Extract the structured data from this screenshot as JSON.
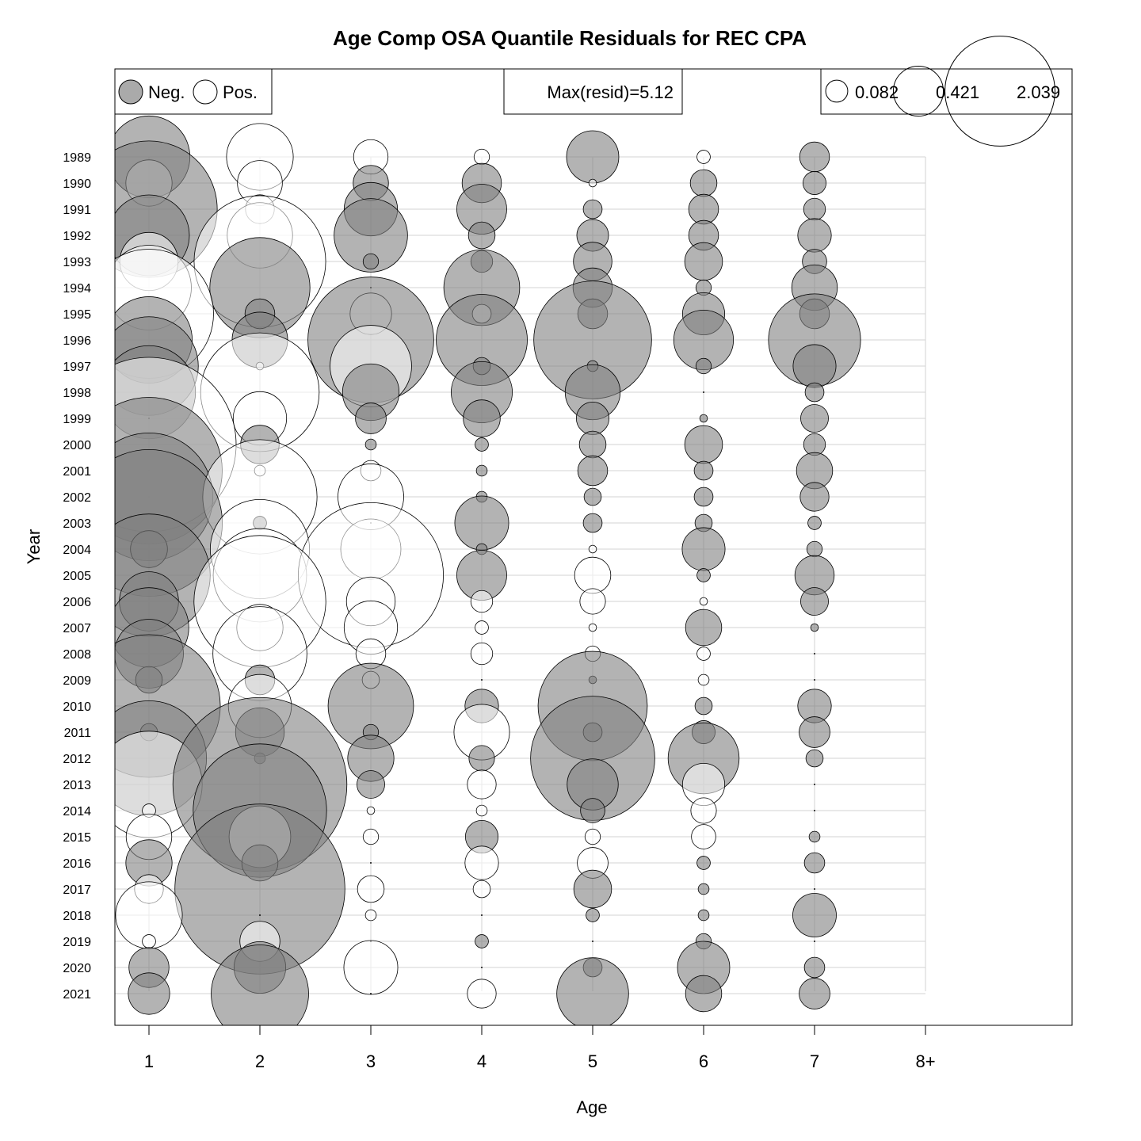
{
  "chart_data": {
    "type": "bubble",
    "title": "Age Comp OSA Quantile Residuals for REC CPA",
    "xlabel": "Age",
    "ylabel": "Year",
    "x_categories": [
      "1",
      "2",
      "3",
      "4",
      "5",
      "6",
      "7",
      "8+"
    ],
    "years": [
      1989,
      1990,
      1991,
      1992,
      1993,
      1994,
      1995,
      1996,
      1997,
      1998,
      1999,
      2000,
      2001,
      2002,
      2003,
      2004,
      2005,
      2006,
      2007,
      2008,
      2009,
      2010,
      2011,
      2012,
      2013,
      2014,
      2015,
      2016,
      2017,
      2018,
      2019,
      2020,
      2021
    ],
    "year_labels": [
      "1989",
      "1990",
      "1991",
      "1992",
      "1993",
      "1994",
      "1995",
      "1996",
      "1997",
      "1998",
      "1999",
      "2000",
      "2001",
      "2002",
      "2003",
      "2004",
      "2005",
      "2006",
      "2007",
      "2008",
      "2009",
      "2010",
      "2011",
      "2012",
      "2013",
      "2014",
      "2015",
      "2016",
      "2017",
      "2018",
      "2019",
      "2020",
      "2021"
    ],
    "legend_sign": {
      "neg_label": "Neg.",
      "pos_label": "Pos."
    },
    "max_text": "Max(resid)=5.12",
    "max_resid": 5.12,
    "size_legend_labels": [
      "0.082",
      "0.421",
      "2.039"
    ],
    "size_legend_values": [
      0.082,
      0.421,
      2.039
    ],
    "colors": {
      "negative": "#999999",
      "positive": "#ffffff",
      "grid": "#d3d3d3"
    },
    "grid": true,
    "residuals": [
      [
        -1.13,
        0.75,
        0.2,
        0.04,
        -0.46,
        0.03,
        -0.15
      ],
      [
        0.36,
        0.34,
        -0.21,
        -0.26,
        0.01,
        -0.12,
        -0.09
      ],
      [
        -3.14,
        0.14,
        -0.48,
        -0.42,
        -0.06,
        -0.15,
        -0.08
      ],
      [
        -1.1,
        0.72,
        -0.91,
        -0.12,
        -0.17,
        -0.15,
        -0.19
      ],
      [
        0.57,
        2.92,
        -0.04,
        -0.08,
        -0.25,
        -0.24,
        -0.1
      ],
      [
        1.21,
        -1.69,
        0.0,
        -0.97,
        -0.26,
        -0.04,
        -0.35
      ],
      [
        2.81,
        -0.15,
        0.29,
        0.06,
        -0.15,
        -0.3,
        -0.15
      ],
      [
        -1.26,
        -0.52,
        -2.67,
        -1.4,
        -2.34,
        -0.6,
        -1.43
      ],
      [
        -1.64,
        0.01,
        1.12,
        -0.05,
        -0.02,
        -0.04,
        -0.31
      ],
      [
        -1.46,
        2.37,
        -0.54,
        -0.63,
        -0.51,
        0.0,
        -0.06
      ],
      [
        0.0,
        0.48,
        -0.16,
        -0.23,
        -0.18,
        -0.01,
        -0.13
      ],
      [
        5.12,
        -0.25,
        -0.02,
        -0.03,
        -0.12,
        -0.24,
        -0.08
      ],
      [
        -3.62,
        0.02,
        0.07,
        -0.02,
        -0.15,
        -0.06,
        -0.22
      ],
      [
        -2.75,
        2.2,
        0.73,
        -0.02,
        -0.05,
        -0.06,
        -0.14
      ],
      [
        -3.63,
        -0.03,
        0.0,
        -0.49,
        -0.06,
        -0.05,
        -0.03
      ],
      [
        -0.23,
        1.66,
        0.61,
        -0.02,
        0.01,
        -0.31,
        -0.04
      ],
      [
        -2.53,
        1.47,
        3.55,
        -0.42,
        0.22,
        -0.03,
        -0.26
      ],
      [
        -0.59,
        2.93,
        0.4,
        0.08,
        0.11,
        0.01,
        -0.13
      ],
      [
        -1.07,
        0.36,
        0.48,
        0.03,
        0.01,
        -0.22,
        -0.01
      ],
      [
        -0.8,
        1.49,
        0.15,
        0.08,
        0.04,
        0.03,
        0.0
      ],
      [
        -0.12,
        -0.15,
        0.05,
        0.0,
        -0.01,
        0.02,
        0.0
      ],
      [
        -3.43,
        0.67,
        -1.23,
        -0.19,
        -2.01,
        -0.05,
        -0.19
      ],
      [
        -0.05,
        -0.4,
        -0.04,
        0.52,
        -0.06,
        -0.09,
        -0.16
      ],
      [
        -2.23,
        -0.02,
        -0.36,
        -0.11,
        -2.6,
        -0.85,
        -0.05
      ],
      [
        1.91,
        -5.1,
        -0.13,
        0.14,
        -0.44,
        0.3,
        0.0
      ],
      [
        0.03,
        -3.0,
        0.01,
        0.02,
        -0.1,
        0.11,
        0.0
      ],
      [
        0.35,
        0.64,
        0.04,
        -0.18,
        0.04,
        0.1,
        -0.02
      ],
      [
        -0.36,
        -0.22,
        0.0,
        0.19,
        0.16,
        -0.03,
        -0.07
      ],
      [
        0.14,
        -4.87,
        0.12,
        0.05,
        -0.24,
        -0.02,
        0.0
      ],
      [
        0.75,
        -0.0,
        0.02,
        0.0,
        -0.03,
        -0.02,
        -0.32
      ],
      [
        0.03,
        0.27,
        0.0,
        -0.03,
        0.0,
        -0.04,
        0.0
      ],
      [
        -0.27,
        -0.45,
        0.49,
        0.0,
        -0.06,
        -0.46,
        -0.07
      ],
      [
        -0.29,
        -1.6,
        0.0,
        0.14,
        -0.87,
        -0.22,
        -0.16
      ]
    ]
  }
}
